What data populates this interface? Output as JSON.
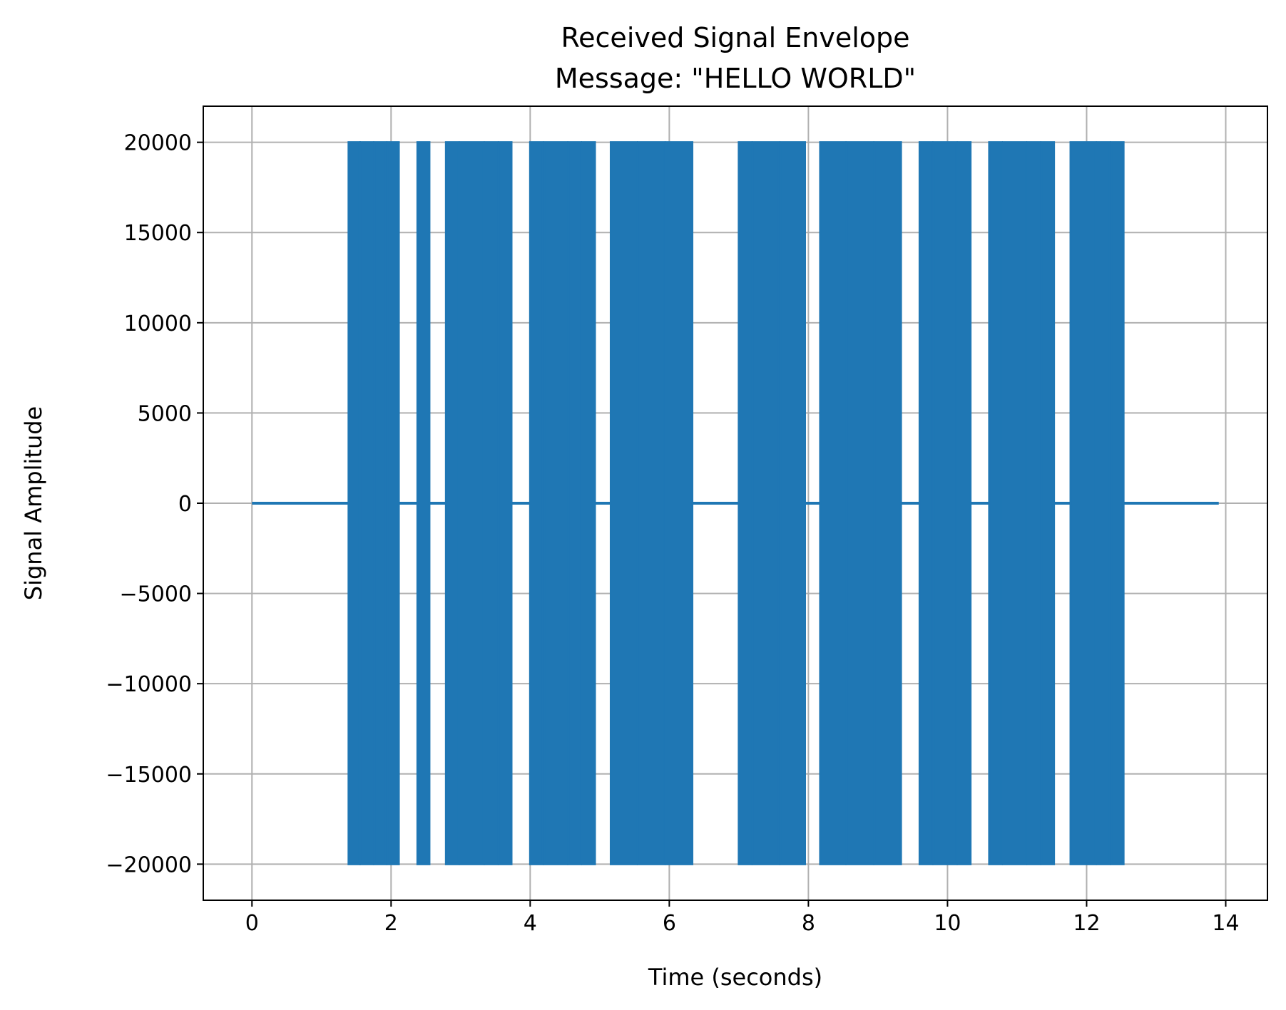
{
  "chart_data": {
    "type": "line",
    "title_lines": [
      "Received Signal Envelope",
      "Message: \"HELLO WORLD\""
    ],
    "xlabel": "Time (seconds)",
    "ylabel": "Signal Amplitude",
    "xlim": [
      -0.7,
      14.6
    ],
    "ylim": [
      -22000,
      22000
    ],
    "xticks": [
      0,
      2,
      4,
      6,
      8,
      10,
      12,
      14
    ],
    "yticks": [
      -20000,
      -15000,
      -10000,
      -5000,
      0,
      5000,
      10000,
      15000,
      20000
    ],
    "ytick_labels": [
      "−20000",
      "−15000",
      "−10000",
      "−5000",
      "0",
      "5000",
      "10000",
      "15000",
      "20000"
    ],
    "grid": true,
    "series": [
      {
        "color": "#1f77b4",
        "baseline": {
          "x_start": 0,
          "x_end": 13.9,
          "value": 0
        },
        "amplitude": 20000,
        "bursts": [
          [
            1.39,
            1.55
          ],
          [
            1.56,
            1.74
          ],
          [
            1.76,
            1.93
          ],
          [
            1.95,
            2.11
          ],
          [
            2.38,
            2.55
          ],
          [
            2.79,
            2.97
          ],
          [
            2.99,
            3.33
          ],
          [
            3.35,
            3.53
          ],
          [
            3.55,
            3.73
          ],
          [
            4.0,
            4.18
          ],
          [
            4.2,
            4.53
          ],
          [
            4.55,
            4.73
          ],
          [
            4.75,
            4.93
          ],
          [
            5.16,
            5.53
          ],
          [
            5.55,
            5.93
          ],
          [
            5.95,
            6.33
          ],
          [
            7.0,
            7.18
          ],
          [
            7.2,
            7.58
          ],
          [
            7.6,
            7.95
          ],
          [
            8.17,
            8.53
          ],
          [
            8.55,
            8.93
          ],
          [
            8.95,
            9.33
          ],
          [
            9.6,
            9.78
          ],
          [
            9.8,
            10.13
          ],
          [
            10.15,
            10.33
          ],
          [
            10.6,
            10.78
          ],
          [
            10.8,
            11.13
          ],
          [
            11.15,
            11.33
          ],
          [
            11.35,
            11.53
          ],
          [
            11.77,
            12.13
          ],
          [
            12.15,
            12.33
          ],
          [
            12.35,
            12.53
          ]
        ]
      }
    ]
  }
}
